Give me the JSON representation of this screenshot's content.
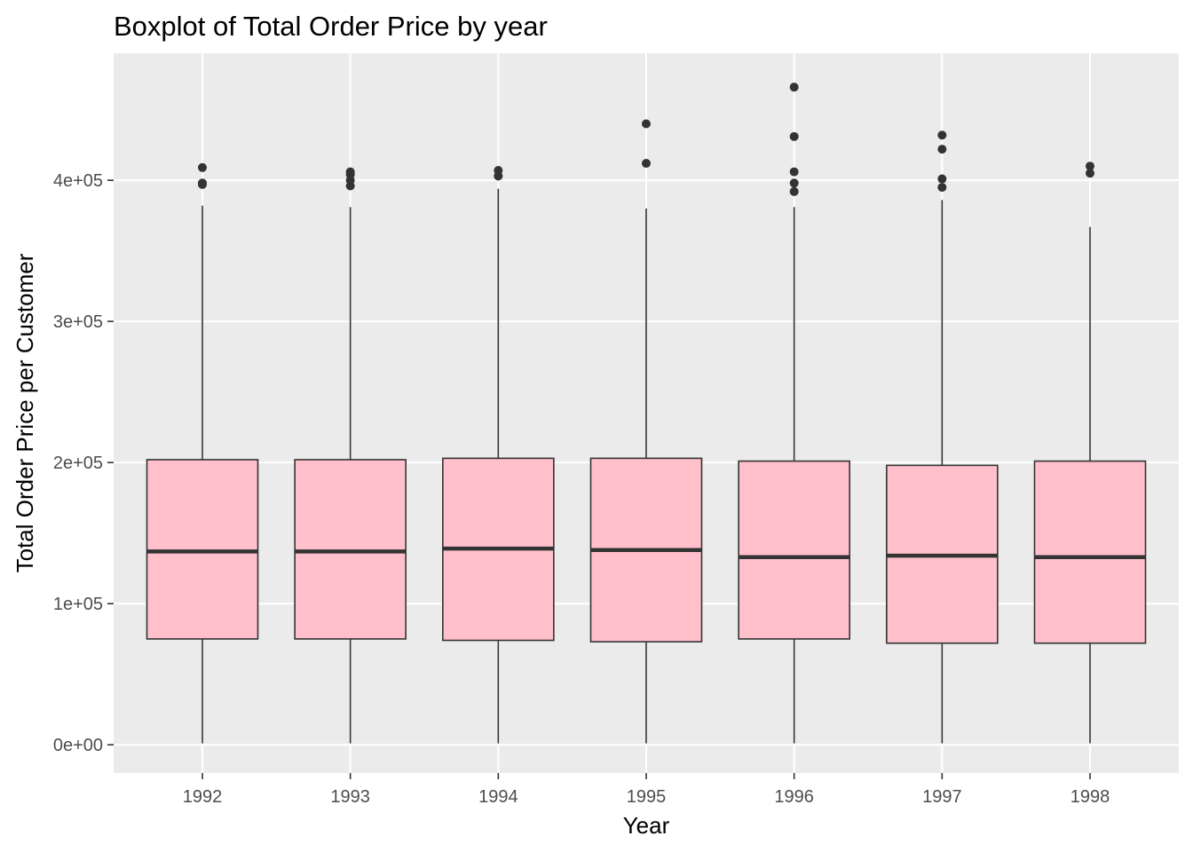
{
  "chart_data": {
    "type": "boxplot",
    "title": "Boxplot of Total Order Price by year",
    "xlabel": "Year",
    "ylabel": "Total Order Price per Customer",
    "ylim": [
      -20000,
      490000
    ],
    "y_ticks": [
      0,
      100000,
      200000,
      300000,
      400000
    ],
    "y_tick_labels": [
      "0e+00",
      "1e+05",
      "2e+05",
      "3e+05",
      "4e+05"
    ],
    "grid": true,
    "legend": "none",
    "colors": {
      "panel_background": "#ebebeb",
      "grid_line": "#ffffff",
      "box_fill": "#ffc0cb",
      "box_line": "#333333",
      "tick_text": "#4d4d4d",
      "tick_mark": "#333333"
    },
    "categories": [
      "1992",
      "1993",
      "1994",
      "1995",
      "1996",
      "1997",
      "1998"
    ],
    "boxes": [
      {
        "year": "1992",
        "whisker_low": 1000,
        "q1": 75000,
        "median": 137000,
        "q3": 202000,
        "whisker_high": 382000,
        "outliers": [
          397000,
          398000,
          409000
        ]
      },
      {
        "year": "1993",
        "whisker_low": 1000,
        "q1": 75000,
        "median": 137000,
        "q3": 202000,
        "whisker_high": 381000,
        "outliers": [
          396000,
          400000,
          404000,
          406000
        ]
      },
      {
        "year": "1994",
        "whisker_low": 1000,
        "q1": 74000,
        "median": 139000,
        "q3": 203000,
        "whisker_high": 394000,
        "outliers": [
          403000,
          407000
        ]
      },
      {
        "year": "1995",
        "whisker_low": 1000,
        "q1": 73000,
        "median": 138000,
        "q3": 203000,
        "whisker_high": 380000,
        "outliers": [
          412000,
          440000
        ]
      },
      {
        "year": "1996",
        "whisker_low": 1000,
        "q1": 75000,
        "median": 133000,
        "q3": 201000,
        "whisker_high": 381000,
        "outliers": [
          392000,
          398000,
          406000,
          431000,
          466000
        ]
      },
      {
        "year": "1997",
        "whisker_low": 1000,
        "q1": 72000,
        "median": 134000,
        "q3": 198000,
        "whisker_high": 386000,
        "outliers": [
          395000,
          401000,
          422000,
          432000
        ]
      },
      {
        "year": "1998",
        "whisker_low": 1000,
        "q1": 72000,
        "median": 133000,
        "q3": 201000,
        "whisker_high": 367000,
        "outliers": [
          405000,
          410000
        ]
      }
    ]
  }
}
